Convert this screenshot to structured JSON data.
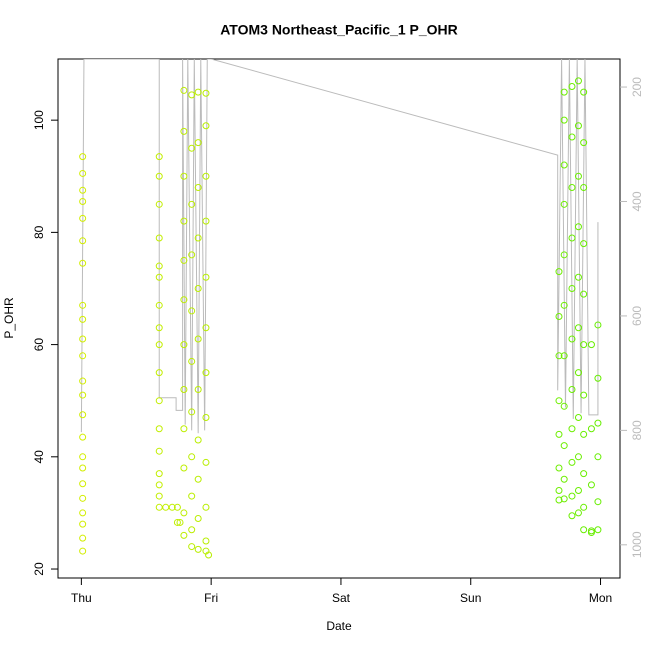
{
  "chart_data": {
    "type": "scatter",
    "title": "ATOM3 Northeast_Pacific_1 P_OHR",
    "x_label": "Date",
    "y_label": "P_OHR",
    "xlim": [
      -0.18,
      4.15
    ],
    "xticks": [
      {
        "value": 0,
        "label": "Thu"
      },
      {
        "value": 1,
        "label": "Fri"
      },
      {
        "value": 2,
        "label": "Sat"
      },
      {
        "value": 3,
        "label": "Sun"
      },
      {
        "value": 4,
        "label": "Mon"
      }
    ],
    "ylim": [
      18.4,
      110.9
    ],
    "yticks": [
      20,
      40,
      60,
      80,
      100
    ],
    "y2lim": [
      1058,
      151
    ],
    "y2ticks": [
      200,
      400,
      600,
      800,
      1000
    ],
    "color_range": [
      "#d2ee00",
      "#66ee00"
    ],
    "line_color": "#bbbbbb",
    "x": [
      0.01,
      0.01,
      0.01,
      0.01,
      0.01,
      0.01,
      0.01,
      0.01,
      0.01,
      0.01,
      0.01,
      0.01,
      0.01,
      0.01,
      0.01,
      0.01,
      0.01,
      0.01,
      0.01,
      0.01,
      0.01,
      0.01,
      0.01,
      0.6,
      0.6,
      0.6,
      0.6,
      0.6,
      0.6,
      0.6,
      0.6,
      0.6,
      0.6,
      0.6,
      0.6,
      0.6,
      0.6,
      0.6,
      0.6,
      0.6,
      0.65,
      0.7,
      0.74,
      0.74,
      0.76,
      0.79,
      0.79,
      0.79,
      0.79,
      0.79,
      0.79,
      0.79,
      0.79,
      0.79,
      0.79,
      0.79,
      0.79,
      0.85,
      0.85,
      0.85,
      0.85,
      0.85,
      0.85,
      0.85,
      0.85,
      0.85,
      0.85,
      0.85,
      0.9,
      0.9,
      0.9,
      0.9,
      0.9,
      0.9,
      0.9,
      0.9,
      0.9,
      0.9,
      0.9,
      0.96,
      0.96,
      0.96,
      0.96,
      0.96,
      0.96,
      0.96,
      0.96,
      0.96,
      0.96,
      0.96,
      0.96,
      0.98,
      3.68,
      3.68,
      3.68,
      3.68,
      3.68,
      3.68,
      3.68,
      3.68,
      3.72,
      3.72,
      3.72,
      3.72,
      3.72,
      3.72,
      3.72,
      3.72,
      3.72,
      3.72,
      3.72,
      3.78,
      3.78,
      3.78,
      3.78,
      3.78,
      3.78,
      3.78,
      3.78,
      3.78,
      3.78,
      3.78,
      3.83,
      3.83,
      3.83,
      3.83,
      3.83,
      3.83,
      3.83,
      3.83,
      3.83,
      3.83,
      3.83,
      3.87,
      3.87,
      3.87,
      3.87,
      3.87,
      3.87,
      3.87,
      3.87,
      3.87,
      3.87,
      3.87,
      3.93,
      3.93,
      3.93,
      3.93,
      3.93,
      3.98,
      3.98,
      3.98,
      3.98,
      3.98,
      3.98
    ],
    "values": [
      23.2,
      25.5,
      28,
      30,
      32.6,
      35.2,
      38,
      40,
      43.5,
      47.5,
      51,
      53.5,
      58,
      61,
      64.5,
      67,
      74.5,
      78.5,
      82.5,
      85.5,
      87.5,
      90.5,
      93.5,
      31,
      33,
      35,
      37,
      41,
      45,
      50,
      55,
      60,
      63,
      67,
      72,
      74,
      79,
      85,
      90,
      93.5,
      31,
      31,
      31,
      28.3,
      28.3,
      105.3,
      98,
      90,
      82,
      75,
      68,
      60,
      52,
      45,
      38,
      30,
      26,
      104.5,
      95,
      85,
      76,
      66,
      57,
      48,
      40,
      33,
      27,
      24,
      105,
      96,
      88,
      79,
      70,
      61,
      52,
      43,
      36,
      29,
      23.5,
      104.8,
      99,
      90,
      82,
      72,
      63,
      55,
      47,
      39,
      31,
      25,
      23.2,
      22.5,
      73,
      65,
      58,
      50,
      44,
      38,
      34,
      32.3,
      105,
      100,
      92,
      85,
      76,
      67,
      58,
      49,
      42,
      36,
      32.5,
      106,
      97,
      88,
      79,
      70,
      61,
      52,
      45,
      39,
      33,
      29.5,
      107,
      99,
      90,
      81,
      72,
      63,
      55,
      47,
      40,
      34,
      30,
      105,
      96,
      88,
      78,
      69,
      60,
      51,
      44,
      37,
      31,
      27,
      26.8,
      26.5,
      35,
      45,
      60,
      63.5,
      54,
      46,
      40,
      32,
      27
    ],
    "line_x": [
      0.0,
      0.02,
      0.6,
      0.6,
      0.73,
      0.73,
      0.78,
      0.78,
      0.8,
      0.82,
      0.85,
      0.87,
      0.9,
      0.92,
      0.95,
      0.97,
      1.0,
      3.67,
      3.67,
      3.7,
      3.73,
      3.76,
      3.79,
      3.82,
      3.85,
      3.88,
      3.91,
      3.98,
      3.98
    ],
    "line_values": [
      803,
      151,
      151,
      743,
      743,
      765,
      765,
      151,
      790,
      151,
      800,
      151,
      805,
      151,
      800,
      151,
      151,
      319,
      730,
      151,
      760,
      151,
      780,
      151,
      770,
      151,
      773,
      773,
      436
    ]
  }
}
